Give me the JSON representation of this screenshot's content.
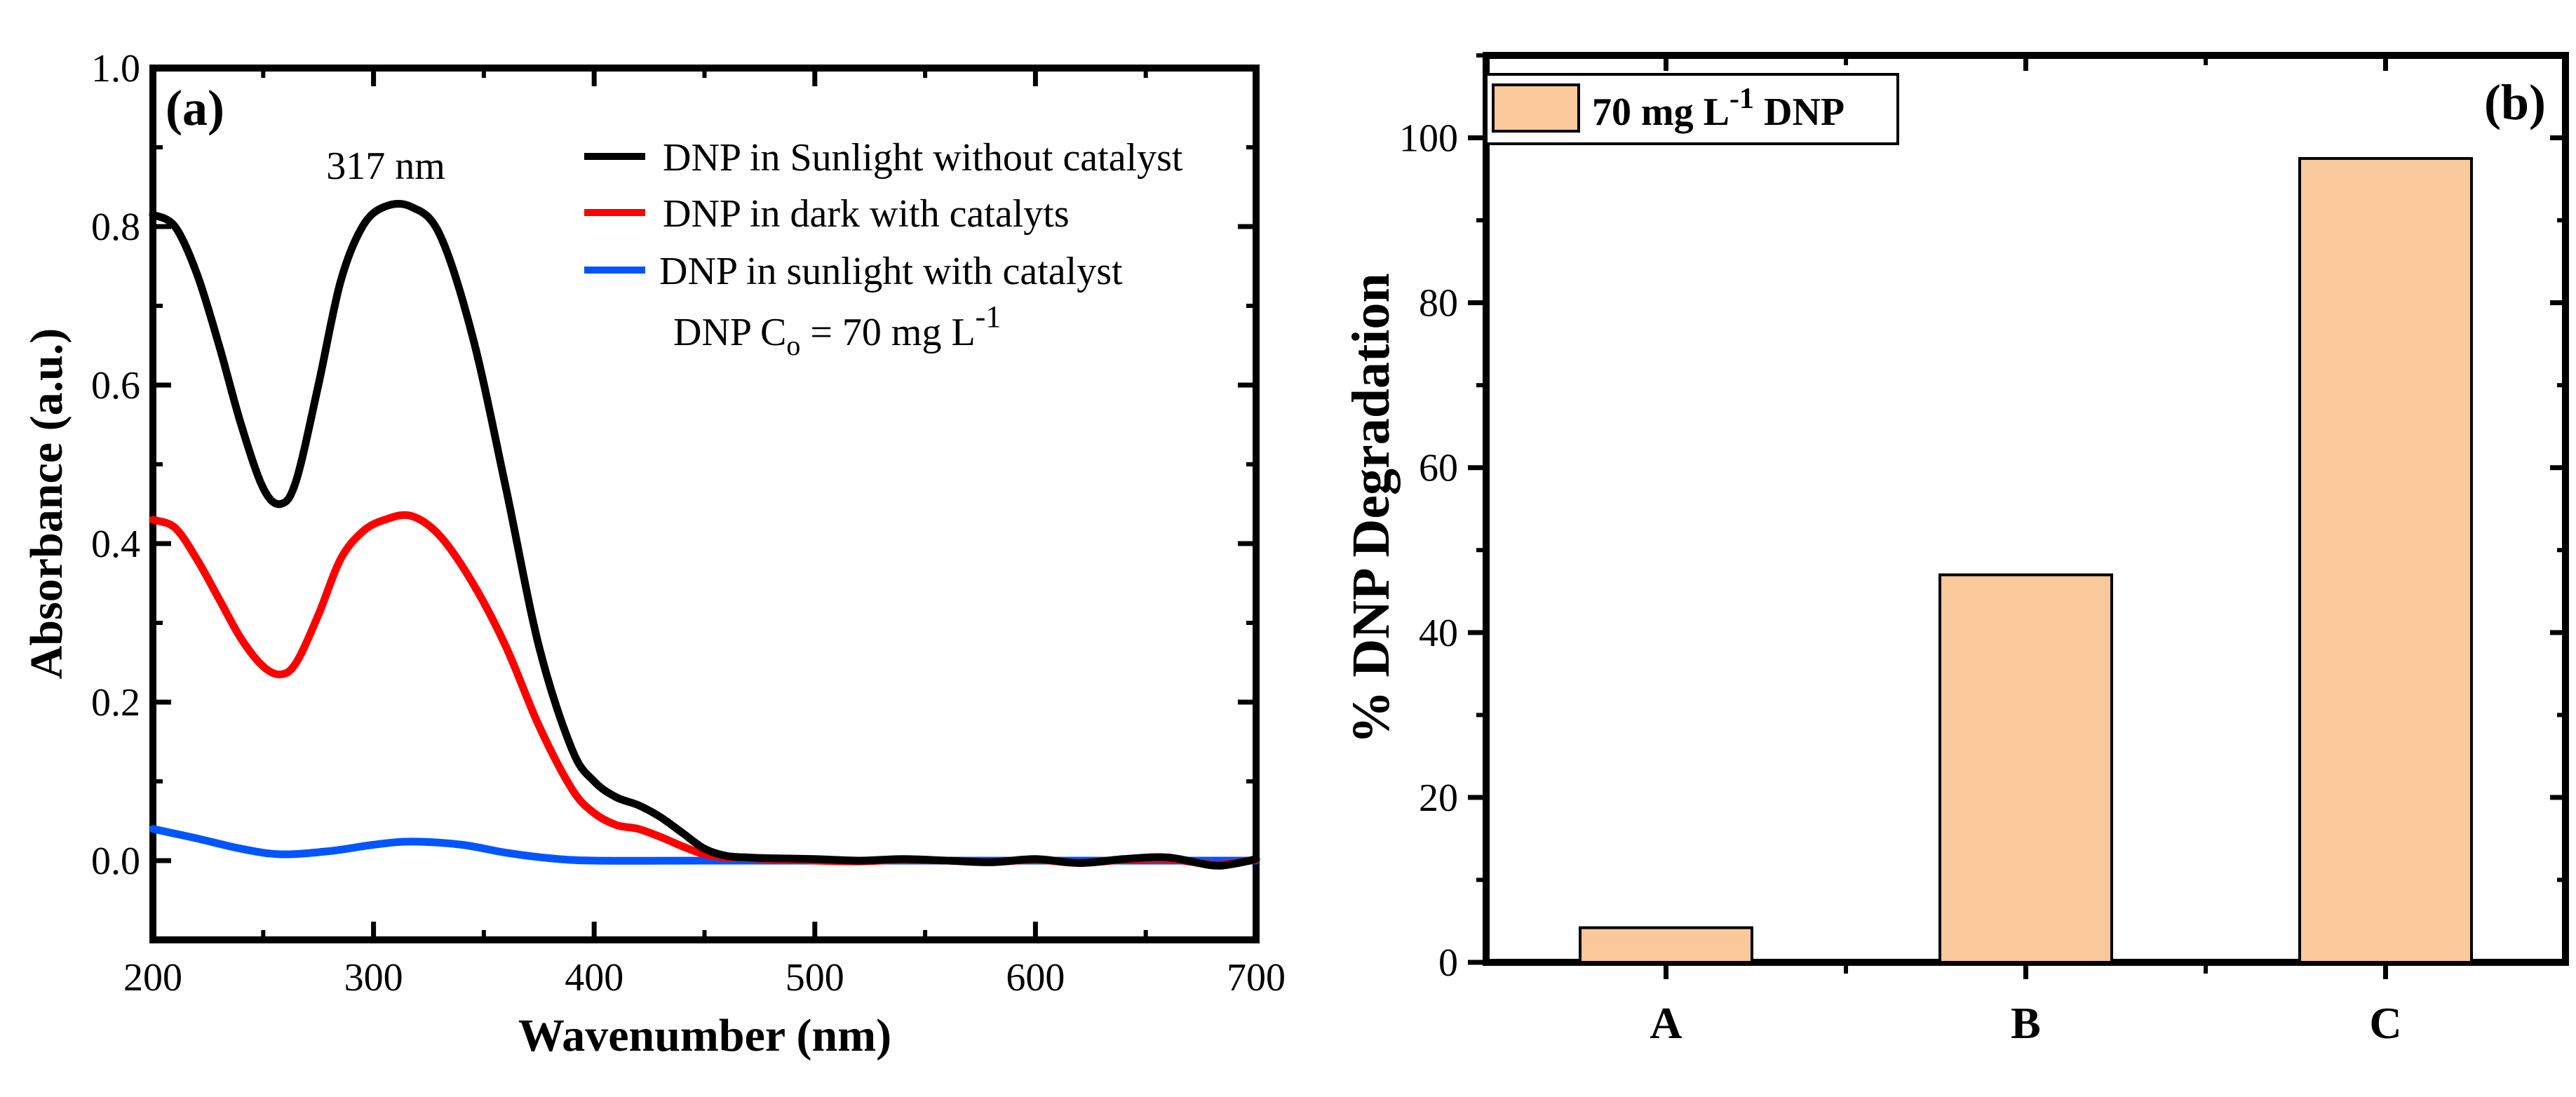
{
  "figure": {
    "panel_a_label": "(a)",
    "panel_b_label": "(b)"
  },
  "chart_data": [
    {
      "type": "line",
      "xlabel": "Wavenumber (nm)",
      "ylabel": "Absorbance (a.u.)",
      "xlim": [
        200,
        700
      ],
      "ylim": [
        -0.1,
        1.0
      ],
      "xticks": [
        200,
        300,
        400,
        500,
        600,
        700
      ],
      "yticks": [
        0.0,
        0.2,
        0.4,
        0.6,
        0.8,
        1.0
      ],
      "xtick_labels": [
        "200",
        "300",
        "400",
        "500",
        "600",
        "700"
      ],
      "ytick_labels": [
        "0.0",
        "0.2",
        "0.4",
        "0.6",
        "0.8",
        "1.0"
      ],
      "annotation": "317 nm",
      "annotation_at": [
        317,
        0.86
      ],
      "legend_note": {
        "prefix": "DNP C",
        "subscript": "o",
        "middle": " = 70 mg L",
        "superscript": "-1"
      },
      "series": [
        {
          "name": "DNP in Sunlight without catalyst",
          "color": "#000000",
          "x": [
            200,
            210,
            220,
            230,
            240,
            250,
            258,
            265,
            275,
            285,
            295,
            305,
            317,
            330,
            345,
            360,
            375,
            390,
            400,
            410,
            420,
            430,
            440,
            450,
            460,
            470,
            480,
            500,
            520,
            540,
            560,
            580,
            600,
            620,
            640,
            660,
            680,
            690,
            700
          ],
          "values": [
            0.815,
            0.8,
            0.74,
            0.65,
            0.55,
            0.47,
            0.45,
            0.48,
            0.6,
            0.73,
            0.8,
            0.825,
            0.825,
            0.79,
            0.66,
            0.47,
            0.27,
            0.14,
            0.1,
            0.08,
            0.07,
            0.055,
            0.035,
            0.015,
            0.006,
            0.004,
            0.003,
            0.002,
            0.0,
            0.002,
            0.0,
            -0.002,
            0.002,
            -0.003,
            0.002,
            0.004,
            -0.006,
            -0.004,
            0.002
          ]
        },
        {
          "name": "DNP in dark with catalyts",
          "color": "#ff0000",
          "x": [
            200,
            210,
            220,
            230,
            240,
            250,
            258,
            265,
            275,
            285,
            295,
            305,
            317,
            330,
            345,
            360,
            375,
            390,
            400,
            410,
            420,
            430,
            440,
            450,
            460,
            470,
            480,
            500,
            520,
            540,
            560,
            580,
            600,
            620,
            640,
            660,
            680,
            690,
            700
          ],
          "values": [
            0.43,
            0.42,
            0.38,
            0.33,
            0.28,
            0.245,
            0.235,
            0.25,
            0.31,
            0.38,
            0.415,
            0.43,
            0.435,
            0.41,
            0.35,
            0.27,
            0.17,
            0.09,
            0.06,
            0.045,
            0.04,
            0.03,
            0.018,
            0.008,
            0.004,
            0.003,
            0.002,
            0.0,
            -0.001,
            0.001,
            0.0,
            -0.002,
            0.001,
            -0.003,
            0.001,
            0.002,
            -0.005,
            -0.003,
            0.001
          ]
        },
        {
          "name": "DNP in sunlight with catalyst",
          "color": "#0055ff",
          "x": [
            200,
            220,
            240,
            258,
            280,
            300,
            317,
            340,
            360,
            380,
            400,
            450,
            500,
            550,
            600,
            650,
            700
          ],
          "values": [
            0.04,
            0.028,
            0.015,
            0.008,
            0.012,
            0.02,
            0.024,
            0.02,
            0.01,
            0.003,
            0.0,
            0.0,
            0.0,
            0.0,
            0.0,
            0.0,
            0.0
          ]
        }
      ]
    },
    {
      "type": "bar",
      "xlabel": "",
      "ylabel": "% DNP Degradation",
      "categories": [
        "A",
        "B",
        "C"
      ],
      "values": [
        4.2,
        47.0,
        97.5
      ],
      "ylim": [
        0,
        110
      ],
      "yticks": [
        0,
        20,
        40,
        60,
        80,
        100
      ],
      "ytick_labels": [
        "0",
        "20",
        "40",
        "60",
        "80",
        "100"
      ],
      "bar_color": "#f9c89b",
      "legend": {
        "prefix": "70 mg L",
        "superscript": "-1",
        "suffix": " DNP"
      }
    }
  ]
}
